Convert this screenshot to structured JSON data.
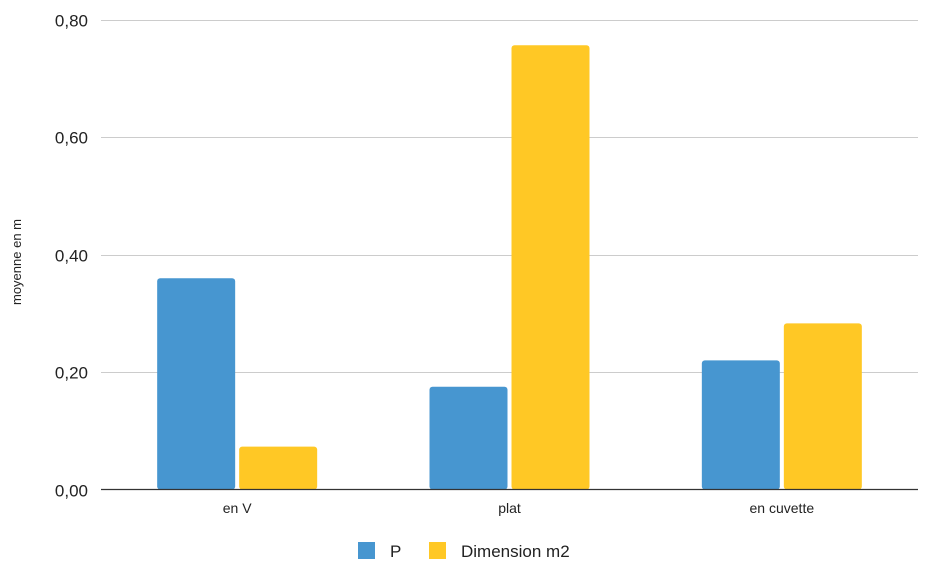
{
  "chart_data": {
    "type": "bar",
    "title": "",
    "xlabel": "",
    "ylabel": "moyenne en m",
    "categories": [
      "en V",
      "plat",
      "en cuvette"
    ],
    "series": [
      {
        "name": "P",
        "values": [
          0.36,
          0.175,
          0.22
        ],
        "color": "#4796d0"
      },
      {
        "name": "Dimension m2",
        "values": [
          0.073,
          0.757,
          0.283
        ],
        "color": "#ffc825"
      }
    ],
    "ylim": [
      0,
      0.8
    ],
    "yticks": [
      0.0,
      0.2,
      0.4,
      0.6,
      0.8
    ],
    "ytick_labels": [
      "0,00",
      "0,20",
      "0,40",
      "0,60",
      "0,80"
    ],
    "grid": true,
    "legend_position": "bottom-center"
  }
}
